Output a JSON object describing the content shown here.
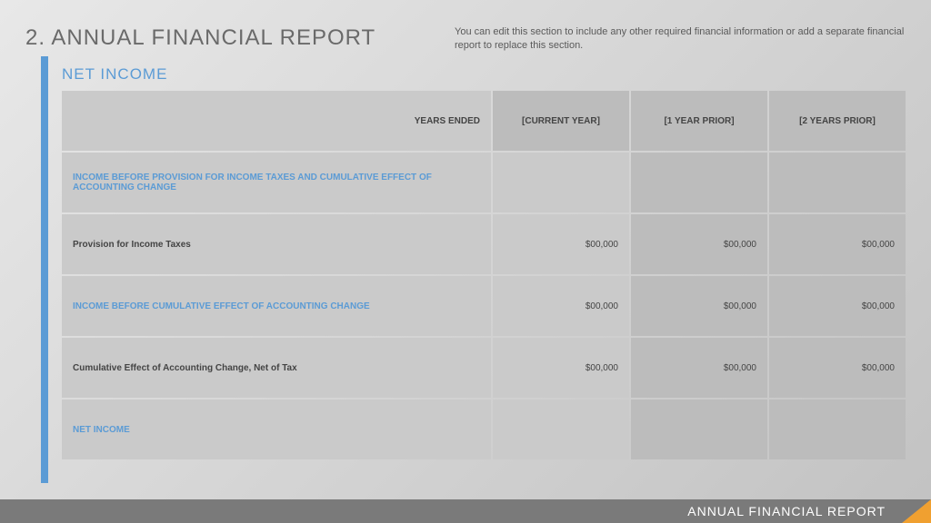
{
  "page": {
    "title": "2. ANNUAL FINANCIAL REPORT",
    "description": "You can edit this section to include any other required financial information or add a separate financial report to replace this section.",
    "section_title": "NET INCOME"
  },
  "table": {
    "header": {
      "label": "YEARS ENDED",
      "col1": "[CURRENT YEAR]",
      "col2": "[1 YEAR PRIOR]",
      "col3": "[2 YEARS PRIOR]"
    },
    "rows": [
      {
        "label": "INCOME BEFORE PROVISION FOR INCOME TAXES AND CUMULATIVE EFFECT OF ACCOUNTING CHANGE",
        "v1": "",
        "v2": "",
        "v3": "",
        "highlight": true
      },
      {
        "label": "Provision for Income Taxes",
        "v1": "$00,000",
        "v2": "$00,000",
        "v3": "$00,000",
        "highlight": false
      },
      {
        "label": "INCOME BEFORE CUMULATIVE EFFECT OF ACCOUNTING CHANGE",
        "v1": "$00,000",
        "v2": "$00,000",
        "v3": "$00,000",
        "highlight": true
      },
      {
        "label": "Cumulative Effect of Accounting Change, Net of Tax",
        "v1": "$00,000",
        "v2": "$00,000",
        "v3": "$00,000",
        "highlight": false
      },
      {
        "label": "NET INCOME",
        "v1": "",
        "v2": "",
        "v3": "",
        "highlight": true
      }
    ]
  },
  "footer": {
    "text": "ANNUAL FINANCIAL REPORT"
  },
  "colors": {
    "accent_blue": "#5b9bd5",
    "accent_orange": "#f0a030",
    "footer_bg": "#7a7a7a",
    "cell_light": "#cacaca",
    "cell_dark": "#bcbcbc",
    "header_light": "#c6c6c6"
  }
}
